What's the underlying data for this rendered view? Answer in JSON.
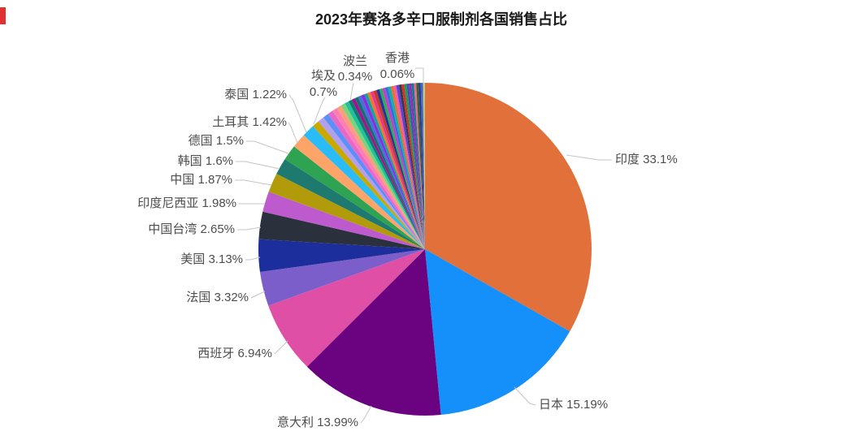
{
  "title": "2023年赛洛多辛口服制剂各国销售占比",
  "colors": {
    "background": "#ffffff",
    "title_text": "#1a1a1a",
    "label_text": "#4d4d4d",
    "leader_line": "#c4c4c4",
    "corner_mark": "#e03131"
  },
  "chart_data": {
    "type": "pie",
    "title": "2023年赛洛多辛口服制剂各国销售占比",
    "legend": "none",
    "label_format": "{name} {value}%",
    "start_angle_deg": 0,
    "direction": "clockwise",
    "slices": [
      {
        "name": "印度",
        "value": 33.1,
        "color": "#e2703a",
        "labeled": true
      },
      {
        "name": "日本",
        "value": 15.19,
        "color": "#1590fb",
        "labeled": true
      },
      {
        "name": "意大利",
        "value": 13.99,
        "color": "#6b0380",
        "labeled": true
      },
      {
        "name": "西班牙",
        "value": 6.94,
        "color": "#e04fa6",
        "labeled": true
      },
      {
        "name": "法国",
        "value": 3.32,
        "color": "#7b5ec9",
        "labeled": true
      },
      {
        "name": "美国",
        "value": 3.13,
        "color": "#1c2d9c",
        "labeled": true
      },
      {
        "name": "中国台湾",
        "value": 2.65,
        "color": "#2b313c",
        "labeled": true
      },
      {
        "name": "印度尼西亚",
        "value": 1.98,
        "color": "#bd5bce",
        "labeled": true
      },
      {
        "name": "中国",
        "value": 1.87,
        "color": "#b29b0b",
        "labeled": true
      },
      {
        "name": "韩国",
        "value": 1.6,
        "color": "#1e7a6e",
        "labeled": true
      },
      {
        "name": "德国",
        "value": 1.5,
        "color": "#2ea351",
        "labeled": true
      },
      {
        "name": "土耳其",
        "value": 1.42,
        "color": "#ffa469",
        "labeled": true
      },
      {
        "name": "泰国",
        "value": 1.22,
        "color": "#29bcf6",
        "labeled": true
      },
      {
        "name": "埃及",
        "value": 0.7,
        "color": "#c9a800",
        "labeled": true
      },
      {
        "name": null,
        "value": 0.6,
        "color": "#b3a0ea",
        "labeled": false
      },
      {
        "name": null,
        "value": 0.55,
        "color": "#5b8ff9",
        "labeled": false
      },
      {
        "name": null,
        "value": 0.52,
        "color": "#e768c8",
        "labeled": false
      },
      {
        "name": null,
        "value": 0.49,
        "color": "#ff7fb2",
        "labeled": false
      },
      {
        "name": null,
        "value": 0.46,
        "color": "#ff9d7c",
        "labeled": false
      },
      {
        "name": null,
        "value": 0.43,
        "color": "#7bd37b",
        "labeled": false
      },
      {
        "name": null,
        "value": 0.4,
        "color": "#21c29a",
        "labeled": false
      },
      {
        "name": "波兰",
        "value": 0.34,
        "color": "#0e7a74",
        "labeled": true
      },
      {
        "name": null,
        "value": 0.33,
        "color": "#a4118c",
        "labeled": false
      },
      {
        "name": null,
        "value": 0.33,
        "color": "#156c74",
        "labeled": false
      },
      {
        "name": null,
        "value": 0.32,
        "color": "#4672d8",
        "labeled": false
      },
      {
        "name": null,
        "value": 0.32,
        "color": "#8a2be2",
        "labeled": false
      },
      {
        "name": null,
        "value": 0.31,
        "color": "#0fa3a3",
        "labeled": false
      },
      {
        "name": null,
        "value": 0.31,
        "color": "#f2762e",
        "labeled": false
      },
      {
        "name": null,
        "value": 0.3,
        "color": "#e8388a",
        "labeled": false
      },
      {
        "name": null,
        "value": 0.3,
        "color": "#c0392b",
        "labeled": false
      },
      {
        "name": null,
        "value": 0.29,
        "color": "#22339b",
        "labeled": false
      },
      {
        "name": null,
        "value": 0.29,
        "color": "#27ae60",
        "labeled": false
      },
      {
        "name": null,
        "value": 0.28,
        "color": "#cc39c4",
        "labeled": false
      },
      {
        "name": null,
        "value": 0.28,
        "color": "#2e6fe0",
        "labeled": false
      },
      {
        "name": null,
        "value": 0.27,
        "color": "#14b0a6",
        "labeled": false
      },
      {
        "name": null,
        "value": 0.27,
        "color": "#ef6c33",
        "labeled": false
      },
      {
        "name": null,
        "value": 0.26,
        "color": "#ec5fa1",
        "labeled": false
      },
      {
        "name": null,
        "value": 0.26,
        "color": "#5d3fd3",
        "labeled": false
      },
      {
        "name": null,
        "value": 0.25,
        "color": "#2f3a4e",
        "labeled": false
      },
      {
        "name": null,
        "value": 0.25,
        "color": "#d93025",
        "labeled": false
      },
      {
        "name": null,
        "value": 0.24,
        "color": "#1f9d55",
        "labeled": false
      },
      {
        "name": null,
        "value": 0.24,
        "color": "#3f51b5",
        "labeled": false
      },
      {
        "name": null,
        "value": 0.23,
        "color": "#9c27b0",
        "labeled": false
      },
      {
        "name": null,
        "value": 0.23,
        "color": "#00838f",
        "labeled": false
      },
      {
        "name": null,
        "value": 0.22,
        "color": "#f06292",
        "labeled": false
      },
      {
        "name": null,
        "value": 0.22,
        "color": "#33691e",
        "labeled": false
      },
      {
        "name": null,
        "value": 0.21,
        "color": "#283593",
        "labeled": false
      },
      {
        "name": null,
        "value": 0.21,
        "color": "#4064d0",
        "labeled": false
      },
      {
        "name": "香港",
        "value": 0.06,
        "color": "#b6bd45",
        "labeled": true
      },
      {
        "name": null,
        "value": 0.05,
        "color": "#c2cc7e",
        "labeled": false
      },
      {
        "name": null,
        "value": 0.04,
        "color": "#8fa653",
        "labeled": false
      },
      {
        "name": null,
        "value": 0.03,
        "color": "#dde29a",
        "labeled": false
      },
      {
        "name": null,
        "value": 0.02,
        "color": "#9aa84f",
        "labeled": false
      }
    ]
  }
}
